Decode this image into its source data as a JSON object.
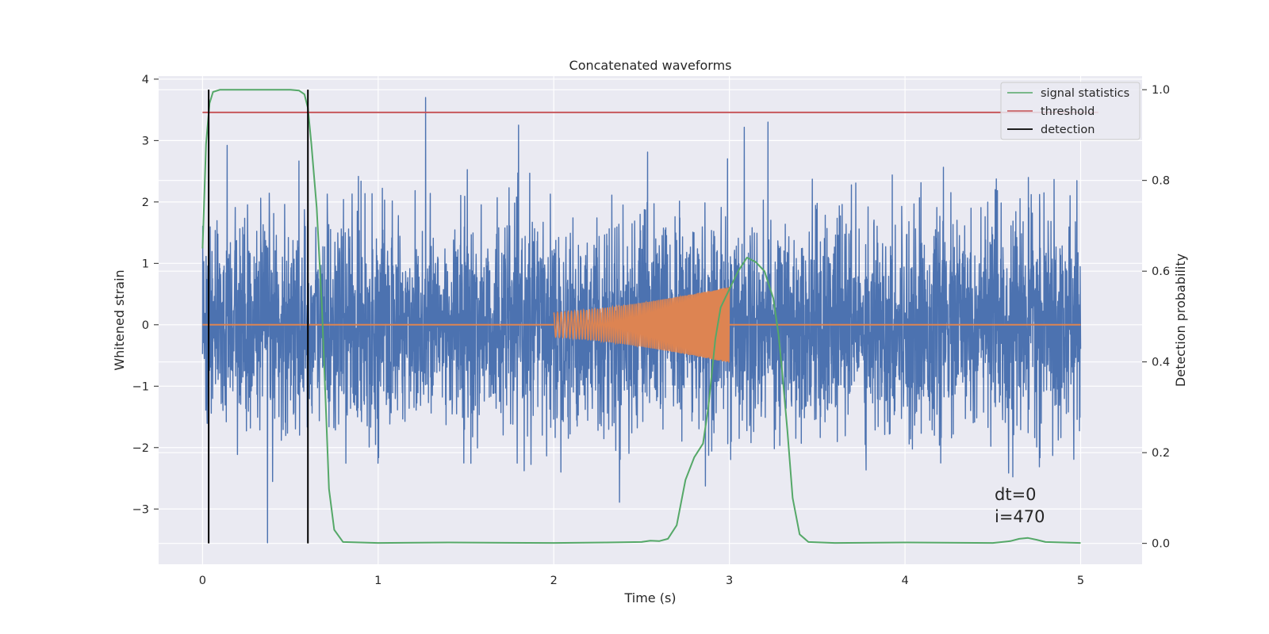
{
  "chart_data": {
    "type": "line",
    "title": "Concatenated waveforms",
    "xlabel": "Time (s)",
    "ylabel": "Whitened strain",
    "y2label": "Detection probability",
    "xlim": [
      -0.25,
      5.35
    ],
    "ylim": [
      -3.9,
      4.05
    ],
    "y2lim": [
      -0.046,
      1.03
    ],
    "xticks": [
      0,
      1,
      2,
      3,
      4,
      5
    ],
    "yticks": [
      -3,
      -2,
      -1,
      0,
      1,
      2,
      3,
      4
    ],
    "y2ticks": [
      0.0,
      0.2,
      0.4,
      0.6,
      0.8,
      1.0
    ],
    "grid": true,
    "legend_position": "top-right",
    "legend": [
      "signal statistics",
      "threshold",
      "detection"
    ],
    "annotations": [
      "dt=0",
      "i=470"
    ],
    "colors": {
      "noise": "#4c72b0",
      "template": "#dd8452",
      "signal_statistics": "#55a868",
      "threshold": "#c44e52",
      "detection": "#000000",
      "background": "#eaeaf2",
      "grid": "#ffffff"
    },
    "series": [
      {
        "name": "whitened strain (noise)",
        "x_range": [
          0,
          5
        ],
        "sample_count": 4000,
        "amplitude_sigma": 0.85,
        "approx_extremes": [
          {
            "x": 1.27,
            "y": 3.7
          },
          {
            "x": 0.37,
            "y": -3.55
          },
          {
            "x": 3.22,
            "y": 3.3
          }
        ]
      },
      {
        "name": "template chirp",
        "x_range": [
          0,
          5
        ],
        "chirp_start": 2.0,
        "chirp_end": 3.0,
        "amplitude_start": 0.2,
        "amplitude_end": 0.62
      },
      {
        "name": "signal statistics",
        "axis": "right",
        "x": [
          0.0,
          0.02,
          0.04,
          0.06,
          0.1,
          0.2,
          0.5,
          0.55,
          0.58,
          0.6,
          0.62,
          0.65,
          0.68,
          0.7,
          0.72,
          0.75,
          0.8,
          1.0,
          1.4,
          2.0,
          2.3,
          2.5,
          2.55,
          2.6,
          2.65,
          2.7,
          2.75,
          2.8,
          2.85,
          2.88,
          2.92,
          2.95,
          3.0,
          3.05,
          3.1,
          3.15,
          3.2,
          3.25,
          3.28,
          3.3,
          3.33,
          3.36,
          3.4,
          3.45,
          3.6,
          4.0,
          4.5,
          4.6,
          4.65,
          4.7,
          4.75,
          4.8,
          5.0
        ],
        "y": [
          0.65,
          0.88,
          0.97,
          0.995,
          1.0,
          1.0,
          1.0,
          0.998,
          0.99,
          0.96,
          0.88,
          0.74,
          0.52,
          0.32,
          0.12,
          0.03,
          0.003,
          0.001,
          0.002,
          0.001,
          0.002,
          0.003,
          0.006,
          0.005,
          0.01,
          0.04,
          0.14,
          0.19,
          0.22,
          0.3,
          0.45,
          0.52,
          0.56,
          0.6,
          0.63,
          0.62,
          0.6,
          0.54,
          0.46,
          0.38,
          0.25,
          0.1,
          0.02,
          0.003,
          0.001,
          0.002,
          0.001,
          0.005,
          0.01,
          0.012,
          0.008,
          0.003,
          0.001
        ]
      },
      {
        "name": "threshold",
        "axis": "right",
        "x": [
          0.0,
          5.1
        ],
        "y": [
          0.95,
          0.95
        ]
      },
      {
        "name": "detection",
        "axis": "right",
        "x": [
          0.035,
          0.6
        ],
        "y_range": [
          0.0,
          1.0
        ]
      }
    ]
  }
}
